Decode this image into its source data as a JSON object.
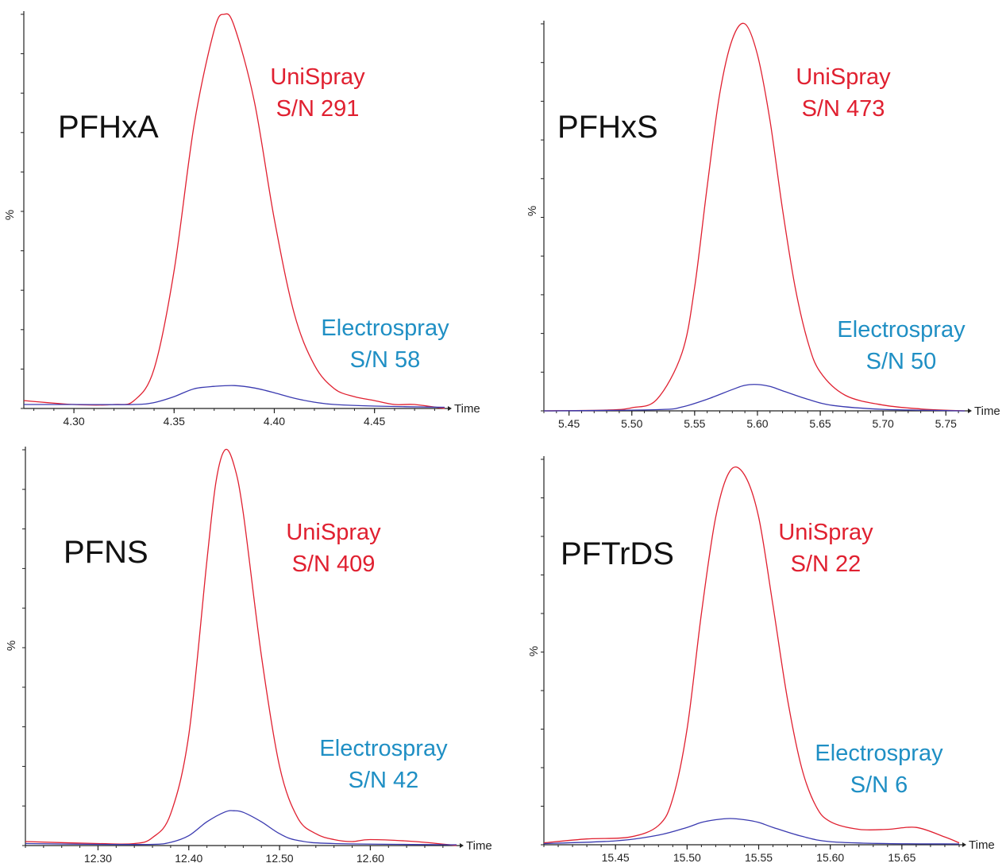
{
  "colors": {
    "unispray": "#e02030",
    "electrospray": "#3a3ab0",
    "electrospray_label": "#1f8fc4",
    "axis": "#222222"
  },
  "chart_data": [
    {
      "type": "line",
      "compound": "PFHxA",
      "ylabel": "%",
      "xlabel": "Time",
      "xlim": [
        4.275,
        4.485
      ],
      "ylim": [
        0,
        100
      ],
      "xticks": [
        "4.30",
        "4.35",
        "4.40",
        "4.45"
      ],
      "series": [
        {
          "name": "UniSpray",
          "sn": "S/N 291",
          "x": [
            4.275,
            4.3,
            4.32,
            4.33,
            4.34,
            4.35,
            4.36,
            4.37,
            4.375,
            4.38,
            4.39,
            4.4,
            4.41,
            4.42,
            4.43,
            4.44,
            4.45,
            4.46,
            4.47,
            4.485
          ],
          "y": [
            2,
            1,
            1,
            2,
            10,
            35,
            72,
            96,
            100,
            97,
            78,
            48,
            24,
            11,
            5,
            3,
            2,
            1,
            1,
            0
          ]
        },
        {
          "name": "Electrospray",
          "sn": "S/N 58",
          "x": [
            4.275,
            4.3,
            4.33,
            4.34,
            4.35,
            4.36,
            4.37,
            4.38,
            4.39,
            4.4,
            4.41,
            4.42,
            4.43,
            4.45,
            4.485
          ],
          "y": [
            1,
            1,
            1,
            1.5,
            3,
            5,
            5.6,
            5.8,
            5.2,
            4,
            2.6,
            1.6,
            1,
            0.6,
            0.3
          ]
        }
      ]
    },
    {
      "type": "line",
      "compound": "PFHxS",
      "ylabel": "%",
      "xlabel": "Time",
      "xlim": [
        5.43,
        5.765
      ],
      "ylim": [
        0,
        100
      ],
      "xticks": [
        "5.45",
        "5.50",
        "5.55",
        "5.60",
        "5.65",
        "5.70",
        "5.75"
      ],
      "series": [
        {
          "name": "UniSpray",
          "sn": "S/N 473",
          "x": [
            5.43,
            5.48,
            5.5,
            5.52,
            5.54,
            5.55,
            5.56,
            5.57,
            5.58,
            5.59,
            5.6,
            5.61,
            5.62,
            5.63,
            5.64,
            5.65,
            5.67,
            5.7,
            5.73,
            5.765
          ],
          "y": [
            0,
            0.2,
            0.8,
            3,
            15,
            32,
            58,
            82,
            96,
            100,
            92,
            75,
            52,
            32,
            18,
            10,
            4,
            1.5,
            0.5,
            0
          ]
        },
        {
          "name": "Electrospray",
          "sn": "S/N 50",
          "x": [
            5.43,
            5.52,
            5.54,
            5.56,
            5.58,
            5.59,
            5.6,
            5.61,
            5.62,
            5.64,
            5.66,
            5.7,
            5.765
          ],
          "y": [
            0,
            0.3,
            1,
            3,
            5.5,
            6.6,
            6.8,
            6.3,
            5.2,
            3,
            1.4,
            0.4,
            0
          ]
        }
      ]
    },
    {
      "type": "line",
      "compound": "PFNS",
      "ylabel": "%",
      "xlabel": "Time",
      "xlim": [
        12.22,
        12.695
      ],
      "ylim": [
        0,
        100
      ],
      "xticks": [
        "12.30",
        "12.40",
        "12.50",
        "12.60"
      ],
      "series": [
        {
          "name": "UniSpray",
          "sn": "S/N 409",
          "x": [
            12.22,
            12.3,
            12.34,
            12.36,
            12.38,
            12.4,
            12.42,
            12.43,
            12.44,
            12.45,
            12.46,
            12.48,
            12.5,
            12.52,
            12.54,
            12.56,
            12.58,
            12.6,
            12.65,
            12.695
          ],
          "y": [
            1,
            0.5,
            0.5,
            2,
            8,
            28,
            72,
            92,
            100,
            96,
            84,
            48,
            20,
            7,
            3,
            1.5,
            1,
            1.5,
            1,
            0
          ]
        },
        {
          "name": "Electrospray",
          "sn": "S/N 42",
          "x": [
            12.22,
            12.3,
            12.36,
            12.38,
            12.4,
            12.42,
            12.44,
            12.45,
            12.46,
            12.48,
            12.5,
            12.52,
            12.56,
            12.695
          ],
          "y": [
            0.5,
            0.3,
            0.3,
            0.8,
            2.5,
            6,
            8.5,
            8.8,
            8.4,
            6,
            3,
            1.3,
            0.5,
            0.2
          ]
        }
      ]
    },
    {
      "type": "line",
      "compound": "PFTrDS",
      "ylabel": "%",
      "xlabel": "Time",
      "xlim": [
        15.4,
        15.69
      ],
      "ylim": [
        0,
        100
      ],
      "xticks": [
        "15.45",
        "15.50",
        "15.55",
        "15.60",
        "15.65"
      ],
      "series": [
        {
          "name": "UniSpray",
          "sn": "S/N 22",
          "x": [
            15.4,
            15.43,
            15.46,
            15.48,
            15.49,
            15.5,
            15.51,
            15.52,
            15.53,
            15.54,
            15.55,
            15.56,
            15.57,
            15.58,
            15.59,
            15.6,
            15.62,
            15.64,
            15.66,
            15.68,
            15.69
          ],
          "y": [
            0.5,
            1.5,
            2,
            5,
            12,
            30,
            60,
            85,
            97,
            96,
            85,
            62,
            38,
            20,
            10,
            6,
            4,
            4,
            4.5,
            2,
            0.5
          ]
        },
        {
          "name": "Electrospray",
          "sn": "S/N 6",
          "x": [
            15.4,
            15.45,
            15.48,
            15.5,
            15.51,
            15.52,
            15.53,
            15.54,
            15.55,
            15.56,
            15.58,
            15.6,
            15.64,
            15.69
          ],
          "y": [
            0.3,
            1,
            2.5,
            4.5,
            5.8,
            6.5,
            6.8,
            6.5,
            5.8,
            4.5,
            2.2,
            0.8,
            0.3,
            0.2
          ]
        }
      ]
    }
  ]
}
